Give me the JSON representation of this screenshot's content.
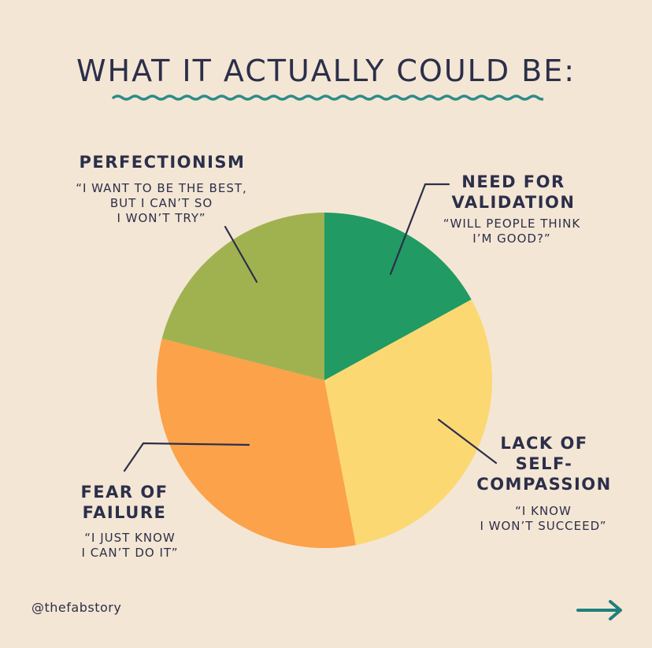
{
  "title": "WHAT IT ACTUALLY COULD BE:",
  "handle": "@thefabstory",
  "colors": {
    "background": "#F4E6D4",
    "ink": "#2B2F4A",
    "wave": "#2E8B8B",
    "arrow": "#1F7F7E"
  },
  "icons": {
    "next": "arrow-right-icon",
    "decoration": "wavy-underline"
  },
  "chart_data": {
    "type": "pie",
    "title": "WHAT IT ACTUALLY COULD BE:",
    "slices": [
      {
        "label": "NEED FOR VALIDATION",
        "quote": "“WILL PEOPLE THINK I’M GOOD?”",
        "value": 17,
        "color": "#219A63"
      },
      {
        "label": "LACK OF SELF-COMPASSION",
        "quote": "“I KNOW I WON’T SUCCEED”",
        "value": 30,
        "color": "#FCD873"
      },
      {
        "label": "FEAR OF FAILURE",
        "quote": "“I JUST KNOW I CAN’T DO IT”",
        "value": 32,
        "color": "#FBA24A"
      },
      {
        "label": "PERFECTIONISM",
        "quote": "“I WANT TO BE THE BEST, BUT I CAN’T SO I WON’T TRY”",
        "value": 21,
        "color": "#A0B250"
      }
    ]
  },
  "labels": {
    "validation": {
      "head": "NEED FOR\nVALIDATION",
      "quote": "“WILL PEOPLE THINK\nI’M GOOD?”"
    },
    "compassion": {
      "head": "LACK OF\nSELF-\nCOMPASSION",
      "quote": "“I KNOW\nI WON’T SUCCEED”"
    },
    "failure": {
      "head": "FEAR OF\nFAILURE",
      "quote": "“I JUST KNOW\nI CAN’T DO IT”"
    },
    "perfectionism": {
      "head": "PERFECTIONISM",
      "quote": "“I WANT TO BE THE BEST,\nBUT I CAN’T SO\nI WON’T TRY”"
    }
  }
}
